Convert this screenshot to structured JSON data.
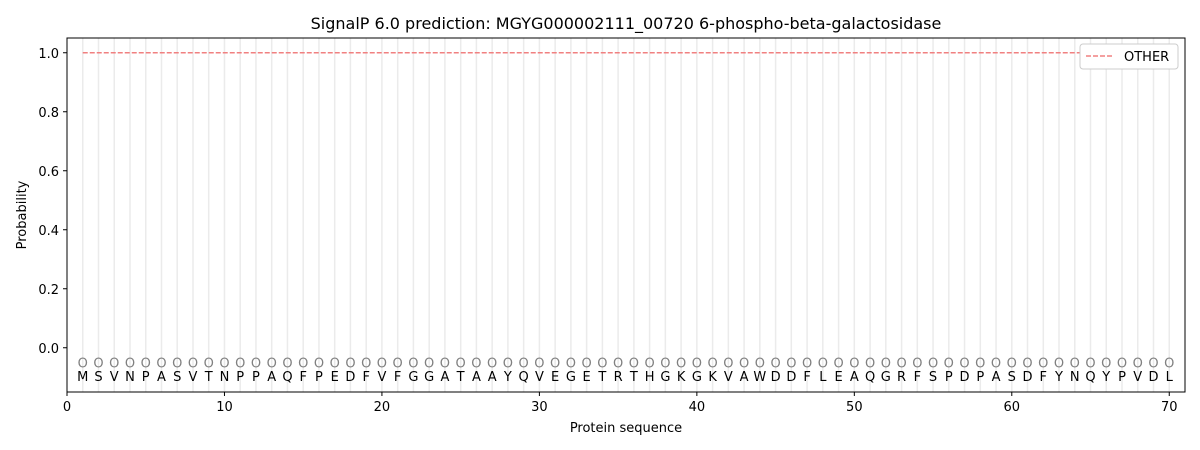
{
  "chart_data": {
    "type": "line",
    "title": "SignalP 6.0 prediction: MGYG000002111_00720 6-phospho-beta-galactosidase",
    "xlabel": "Protein sequence",
    "ylabel": "Probability",
    "xlim": [
      0,
      71
    ],
    "ylim": [
      -0.15,
      1.05
    ],
    "xticks": [
      0,
      10,
      20,
      30,
      40,
      50,
      60,
      70
    ],
    "yticks": [
      0.0,
      0.2,
      0.4,
      0.6,
      0.8,
      1.0
    ],
    "ytick_labels": [
      "0.0",
      "0.2",
      "0.4",
      "0.6",
      "0.8",
      "1.0"
    ],
    "grid": "vertical lines at each residue",
    "legend_placement": "top-right",
    "sequence": "MSVNPASVTNPPAQFPEDFVFGGATAAYQVEGETRTHGKGKVAWDDFLEAQGRFSPDPASDFYNQYPVDL",
    "residue_label": "O",
    "series": [
      {
        "name": "OTHER",
        "color": "#f08080",
        "style": "dashed",
        "x_start": 1,
        "x_end": 70,
        "value": 1.0
      }
    ]
  }
}
